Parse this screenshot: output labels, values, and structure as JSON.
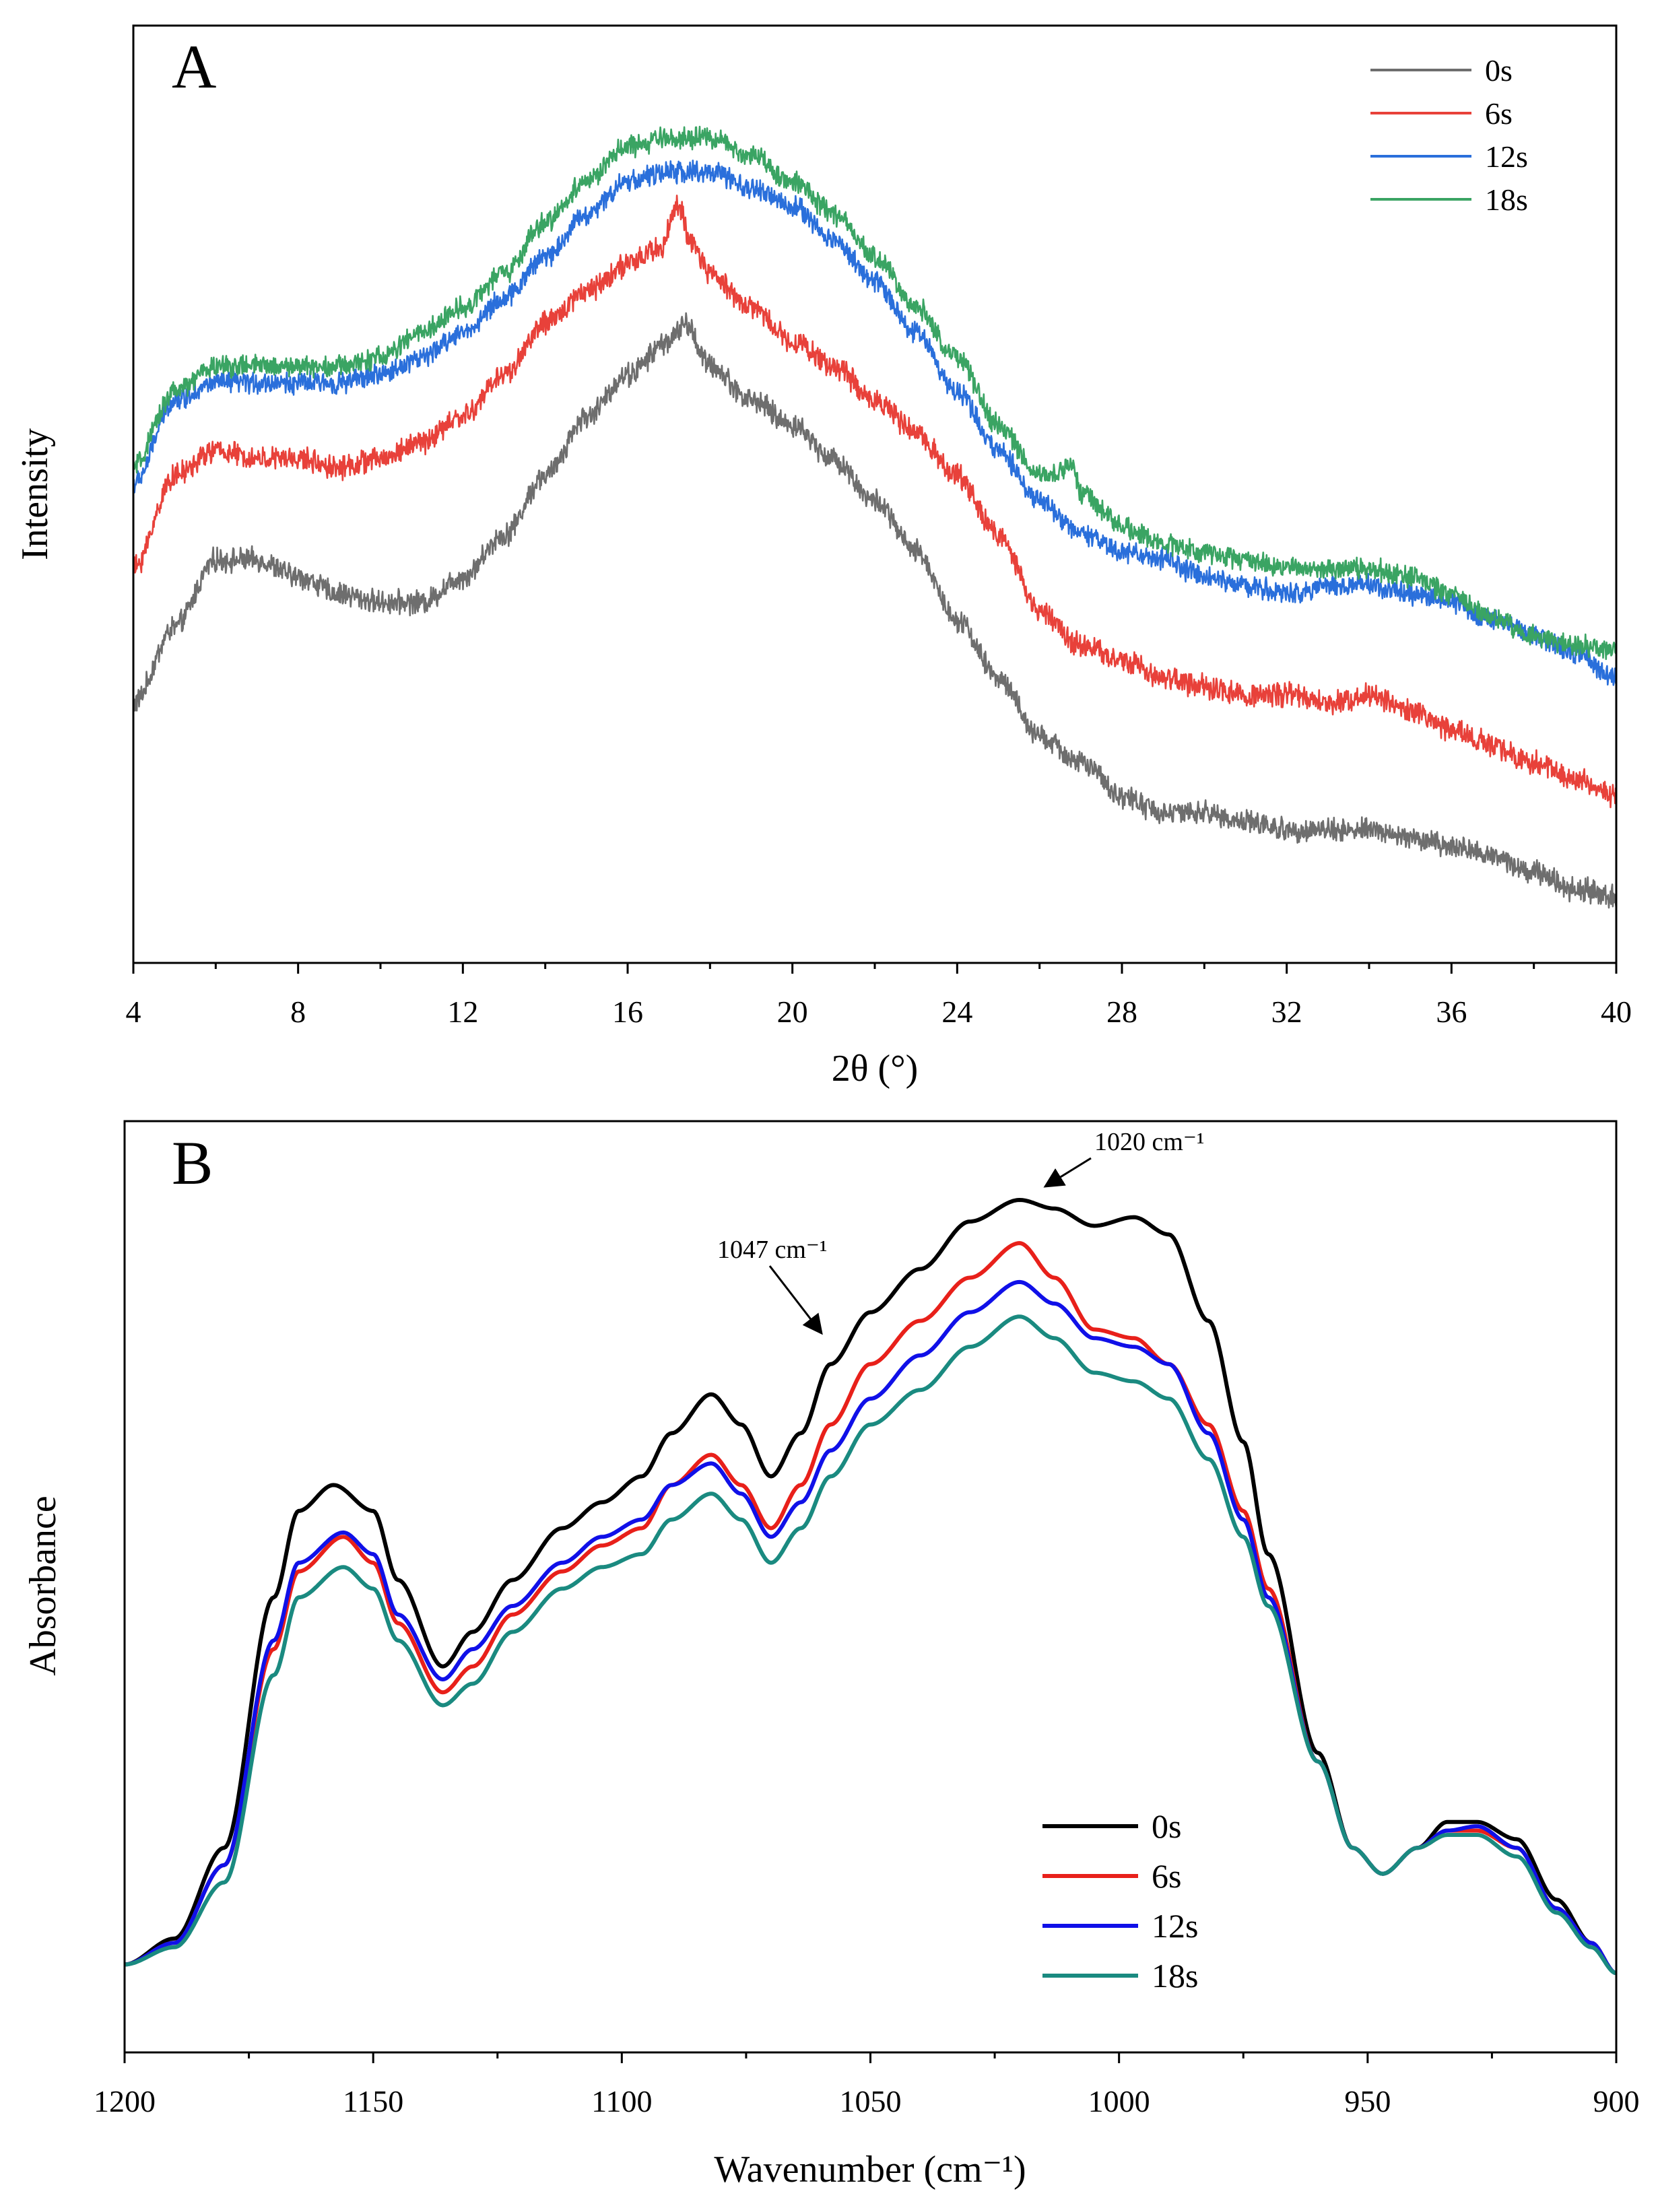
{
  "chart_data": [
    {
      "panel": "A",
      "type": "line",
      "title": "",
      "xlabel": "2θ (°)",
      "ylabel": "Intensity",
      "xlim": [
        4,
        40
      ],
      "ylim": [
        0,
        100
      ],
      "xticks": [
        4,
        8,
        12,
        16,
        20,
        24,
        28,
        32,
        36,
        40
      ],
      "xtick_labels": [
        "4",
        "8",
        "12",
        "16",
        "20",
        "24",
        "28",
        "32",
        "36",
        "40"
      ],
      "yticks_shown": false,
      "grid": false,
      "legend_position": "top-right",
      "noise": true,
      "series": [
        {
          "name": "0s",
          "color": "#6e6e6e",
          "noise_amp": 1.1,
          "x": [
            4,
            5,
            6,
            7,
            8,
            9,
            10,
            11,
            12,
            13,
            14,
            15,
            16,
            17,
            17.4,
            18,
            19,
            20,
            21,
            22,
            23,
            24,
            25,
            26,
            27,
            28,
            29,
            30,
            31,
            32,
            33,
            34,
            35,
            36,
            37,
            38,
            39,
            40
          ],
          "y": [
            26,
            35,
            43,
            43,
            41,
            39,
            38,
            38,
            41,
            46,
            53,
            60,
            65,
            69,
            71,
            66,
            62,
            59,
            55,
            50,
            44,
            36,
            29,
            22,
            19,
            15,
            13,
            13,
            12,
            11,
            11,
            11,
            10,
            9,
            8,
            6,
            4,
            3
          ]
        },
        {
          "name": "6s",
          "color": "#e8413a",
          "noise_amp": 1.1,
          "x": [
            4,
            5,
            6,
            7,
            8,
            9,
            10,
            11,
            12,
            13,
            14,
            15,
            16,
            16.8,
            17.2,
            17.6,
            18,
            19,
            20,
            21,
            22,
            23,
            24,
            25,
            26,
            27,
            28,
            29,
            30,
            31,
            32,
            33,
            34,
            35,
            36,
            37,
            38,
            39,
            40
          ],
          "y": [
            42,
            53,
            56,
            55,
            55,
            54,
            55,
            57,
            60,
            65,
            71,
            75,
            78,
            80,
            85,
            80,
            77,
            73,
            69,
            66,
            62,
            58,
            53,
            46,
            37,
            33,
            31,
            29,
            28,
            27,
            27,
            26,
            27,
            25,
            23,
            21,
            19,
            17,
            15
          ]
        },
        {
          "name": "12s",
          "color": "#2a6fdb",
          "noise_amp": 1.0,
          "x": [
            4,
            5,
            6,
            7,
            8,
            9,
            10,
            11,
            12,
            13,
            14,
            15,
            16,
            17,
            18,
            19,
            20,
            21,
            22,
            23,
            24,
            25,
            26,
            27,
            28,
            29,
            30,
            31,
            32,
            33,
            34,
            35,
            36,
            37,
            38,
            39,
            40
          ],
          "y": [
            52,
            62,
            64,
            64,
            64,
            64,
            65,
            67,
            70,
            74,
            79,
            84,
            88,
            89,
            89,
            87,
            85,
            81,
            76,
            70,
            63,
            56,
            50,
            46,
            44,
            43,
            41,
            40,
            39,
            40,
            40,
            39,
            38,
            36,
            34,
            32,
            29
          ]
        },
        {
          "name": "18s",
          "color": "#3aa463",
          "noise_amp": 1.0,
          "x": [
            4,
            5,
            6,
            7,
            8,
            9,
            10,
            11,
            12,
            13,
            14,
            15,
            16,
            17,
            18,
            19,
            20,
            21,
            22,
            23,
            24,
            25,
            26,
            26.8,
            27,
            28,
            29,
            30,
            31,
            32,
            33,
            34,
            35,
            36,
            37,
            38,
            39,
            40
          ],
          "y": [
            54,
            63,
            66,
            66,
            66,
            66,
            67,
            70,
            73,
            77,
            83,
            88,
            92,
            93,
            93,
            91,
            88,
            84,
            79,
            73,
            67,
            59,
            53,
            54,
            51,
            47,
            45,
            44,
            43,
            42,
            42,
            42,
            41,
            39,
            36,
            34,
            33,
            32
          ]
        }
      ]
    },
    {
      "panel": "B",
      "type": "line",
      "title": "",
      "xlabel": "Wavenumber (cm⁻¹)",
      "ylabel": "Absorbance",
      "xlim": [
        1200,
        900
      ],
      "ylim": [
        0,
        100
      ],
      "xticks": [
        1200,
        1150,
        1100,
        1050,
        1000,
        950,
        900
      ],
      "xtick_labels": [
        "1200",
        "1150",
        "1100",
        "1050",
        "1000",
        "950",
        "900"
      ],
      "yticks_shown": false,
      "grid": false,
      "legend_position": "bottom-center",
      "noise": false,
      "annotations": [
        {
          "text": "1020 cm⁻¹",
          "x": 1020
        },
        {
          "text": "1047 cm⁻¹",
          "x": 1047
        }
      ],
      "series": [
        {
          "name": "0s",
          "color": "#000000",
          "x": [
            1200,
            1190,
            1180,
            1170,
            1165,
            1158,
            1150,
            1145,
            1136,
            1130,
            1122,
            1112,
            1104,
            1096,
            1090,
            1082,
            1076,
            1070,
            1064,
            1058,
            1050,
            1040,
            1030,
            1020,
            1013,
            1005,
            997,
            990,
            982,
            975,
            970,
            960,
            953,
            947,
            940,
            934,
            928,
            920,
            912,
            905,
            900
          ],
          "y": [
            5.5,
            8.5,
            19,
            48,
            58,
            61,
            58,
            50,
            40,
            44,
            50,
            56,
            59,
            62,
            67,
            71.5,
            68,
            62,
            67,
            75,
            81,
            86,
            91.5,
            94,
            93,
            91,
            92,
            90,
            80,
            66,
            53,
            30,
            19,
            16,
            19,
            22,
            22,
            20,
            13,
            8,
            4.5
          ]
        },
        {
          "name": "6s",
          "color": "#e8201a",
          "x": [
            1200,
            1190,
            1180,
            1170,
            1165,
            1156,
            1150,
            1145,
            1136,
            1130,
            1122,
            1112,
            1104,
            1096,
            1090,
            1082,
            1076,
            1070,
            1064,
            1058,
            1050,
            1040,
            1030,
            1020,
            1013,
            1005,
            997,
            990,
            982,
            975,
            970,
            960,
            953,
            947,
            940,
            934,
            928,
            920,
            912,
            905,
            900
          ],
          "y": [
            5.5,
            8,
            17,
            42,
            51,
            55,
            52,
            45,
            37,
            40,
            46,
            51,
            54,
            56,
            61,
            64.5,
            61,
            56,
            61,
            68,
            75,
            80,
            85,
            89,
            85,
            79,
            78,
            75,
            68,
            58,
            49,
            29,
            19,
            16,
            19,
            21,
            21,
            19,
            12,
            8,
            4.5
          ]
        },
        {
          "name": "12s",
          "color": "#1010e8",
          "x": [
            1200,
            1190,
            1180,
            1170,
            1165,
            1156,
            1150,
            1145,
            1136,
            1130,
            1122,
            1112,
            1104,
            1096,
            1090,
            1082,
            1076,
            1070,
            1064,
            1058,
            1050,
            1040,
            1030,
            1020,
            1013,
            1005,
            997,
            990,
            982,
            975,
            970,
            960,
            953,
            947,
            940,
            934,
            928,
            920,
            912,
            905,
            900
          ],
          "y": [
            5.5,
            8,
            17,
            43,
            52,
            55.5,
            53,
            46,
            38.5,
            42,
            47,
            52,
            55,
            57,
            61,
            63.5,
            60,
            55,
            59,
            65,
            71,
            76,
            81,
            84.5,
            82,
            78,
            77,
            75,
            67,
            57,
            48,
            29,
            19,
            16,
            19,
            21,
            21.5,
            19,
            12,
            8,
            4.5
          ]
        },
        {
          "name": "18s",
          "color": "#1a8a80",
          "x": [
            1200,
            1190,
            1180,
            1170,
            1165,
            1156,
            1150,
            1145,
            1136,
            1130,
            1122,
            1112,
            1104,
            1096,
            1090,
            1082,
            1076,
            1070,
            1064,
            1058,
            1050,
            1040,
            1030,
            1020,
            1013,
            1005,
            997,
            990,
            982,
            975,
            970,
            960,
            953,
            947,
            940,
            934,
            928,
            920,
            912,
            905,
            900
          ],
          "y": [
            5.5,
            7.5,
            15,
            39,
            48,
            51.5,
            49,
            43,
            35.5,
            38,
            44,
            49,
            51.5,
            53,
            57,
            60,
            57,
            52,
            56,
            62,
            68,
            72,
            77,
            80.5,
            78,
            74,
            73,
            71,
            64,
            55,
            47,
            29,
            19,
            16,
            19,
            20.5,
            20.5,
            18,
            11.5,
            7.5,
            4.5
          ]
        }
      ]
    }
  ]
}
